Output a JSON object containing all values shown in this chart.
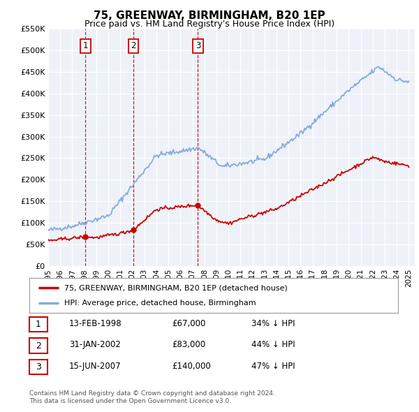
{
  "title": "75, GREENWAY, BIRMINGHAM, B20 1EP",
  "subtitle": "Price paid vs. HM Land Registry's House Price Index (HPI)",
  "ylabel_ticks": [
    "£0",
    "£50K",
    "£100K",
    "£150K",
    "£200K",
    "£250K",
    "£300K",
    "£350K",
    "£400K",
    "£450K",
    "£500K",
    "£550K"
  ],
  "ytick_values": [
    0,
    50000,
    100000,
    150000,
    200000,
    250000,
    300000,
    350000,
    400000,
    450000,
    500000,
    550000
  ],
  "sale_points": [
    {
      "year": 1998.1,
      "price": 67000,
      "label": "1"
    },
    {
      "year": 2002.08,
      "price": 83000,
      "label": "2"
    },
    {
      "year": 2007.46,
      "price": 140000,
      "label": "3"
    }
  ],
  "sale_color": "#cc0000",
  "hpi_color": "#88aadd",
  "legend_entries": [
    "75, GREENWAY, BIRMINGHAM, B20 1EP (detached house)",
    "HPI: Average price, detached house, Birmingham"
  ],
  "table_rows": [
    {
      "num": "1",
      "date": "13-FEB-1998",
      "price": "£67,000",
      "hpi": "34% ↓ HPI"
    },
    {
      "num": "2",
      "date": "31-JAN-2002",
      "price": "£83,000",
      "hpi": "44% ↓ HPI"
    },
    {
      "num": "3",
      "date": "15-JUN-2007",
      "price": "£140,000",
      "hpi": "47% ↓ HPI"
    }
  ],
  "footer": "Contains HM Land Registry data © Crown copyright and database right 2024.\nThis data is licensed under the Open Government Licence v3.0.",
  "bg_color": "#ffffff",
  "chart_bg": "#eef2f8",
  "grid_color": "#ffffff",
  "label_box_color": "#cc0000",
  "vline_color": "#cc0000"
}
